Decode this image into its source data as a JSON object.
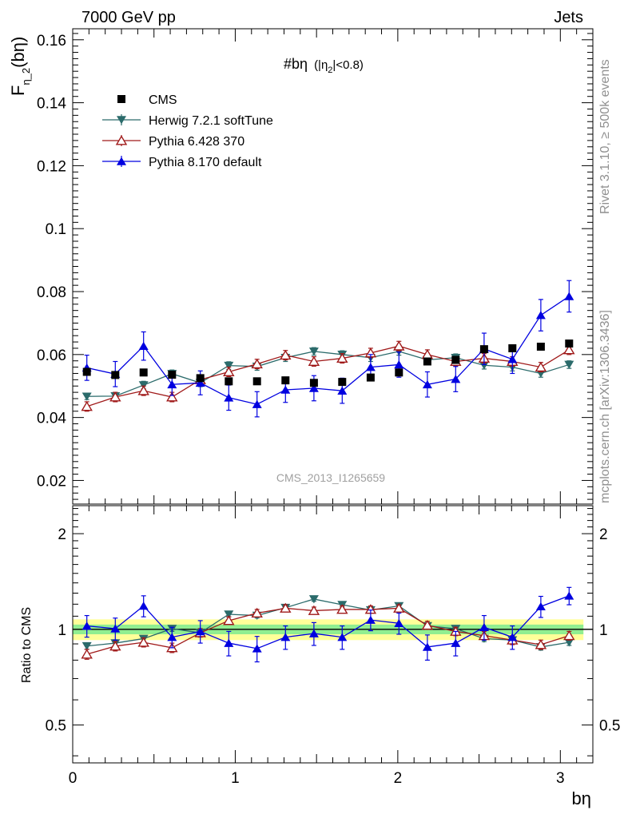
{
  "header": {
    "left": "7000 GeV pp",
    "right": "Jets"
  },
  "side_labels": {
    "rivet": "Rivet 3.1.10, ≥ 500k events",
    "mcplots": "mcplots.cern.ch [arXiv:1306.3436]"
  },
  "colors": {
    "data": "#000000",
    "herwig": "#2b6b6b",
    "pythia6": "#a01a1a",
    "pythia8": "#0000e0",
    "band_inner": "#90ee90",
    "band_outer": "#ffff99",
    "watermark": "#a0a0a0"
  },
  "chart_data": [
    {
      "type": "scatter",
      "title": "#bη",
      "title_suffix": "(|η",
      "title_sub": "2",
      "title_end": "|<0.8)",
      "watermark": "CMS_2013_I1265659",
      "ylabel_main": "F",
      "ylabel_sub": "η_2",
      "ylabel_end": "(bη)",
      "xlim": [
        0,
        3.2
      ],
      "ylim": [
        0.0125,
        0.1635
      ],
      "yticks": [
        0.02,
        0.04,
        0.06,
        0.08,
        0.1,
        0.12,
        0.14,
        0.16
      ],
      "ytick_labels": [
        "0.02",
        "0.04",
        "0.06",
        "0.08",
        "0.1",
        "0.12",
        "0.14",
        "0.16"
      ],
      "x": [
        0.087,
        0.262,
        0.436,
        0.611,
        0.785,
        0.96,
        1.134,
        1.309,
        1.484,
        1.658,
        1.833,
        2.007,
        2.182,
        2.356,
        2.531,
        2.705,
        2.88,
        3.054
      ],
      "legend": [
        "CMS",
        "Herwig 7.2.1 softTune",
        "Pythia 6.428 370",
        "Pythia 8.170 default"
      ],
      "series": [
        {
          "name": "CMS",
          "key": "data",
          "marker": "square",
          "values": [
            0.0545,
            0.0535,
            0.0543,
            0.0536,
            0.0525,
            0.0515,
            0.0515,
            0.0518,
            0.051,
            0.0513,
            0.0527,
            0.0543,
            0.0578,
            0.0583,
            0.0617,
            0.062,
            0.0625,
            0.0635
          ],
          "errors": [
            0.0008,
            0.0008,
            0.0008,
            0.0008,
            0.0008,
            0.0008,
            0.0008,
            0.0008,
            0.0008,
            0.0008,
            0.0008,
            0.0008,
            0.0008,
            0.0008,
            0.0008,
            0.0008,
            0.0008,
            0.0008
          ]
        },
        {
          "name": "Herwig 7.2.1 softTune",
          "key": "herwig",
          "marker": "triangle-down",
          "values": [
            0.0467,
            0.0468,
            0.0503,
            0.0539,
            0.051,
            0.0565,
            0.0562,
            0.059,
            0.061,
            0.06,
            0.059,
            0.061,
            0.0583,
            0.059,
            0.0566,
            0.056,
            0.054,
            0.0568
          ],
          "errors": [
            0.001,
            0.0012,
            0.0012,
            0.0012,
            0.0012,
            0.0012,
            0.0012,
            0.0012,
            0.0012,
            0.0012,
            0.0012,
            0.0012,
            0.0012,
            0.0012,
            0.0012,
            0.0012,
            0.0012,
            0.0012
          ]
        },
        {
          "name": "Pythia 6.428 370",
          "key": "pythia6",
          "marker": "triangle-open",
          "values": [
            0.0435,
            0.0465,
            0.0485,
            0.0465,
            0.052,
            0.0545,
            0.057,
            0.0598,
            0.0578,
            0.0588,
            0.0605,
            0.0627,
            0.06,
            0.0578,
            0.0588,
            0.0578,
            0.056,
            0.0615
          ],
          "errors": [
            0.0015,
            0.0015,
            0.0015,
            0.0015,
            0.0015,
            0.0015,
            0.0015,
            0.0015,
            0.0015,
            0.0015,
            0.0015,
            0.0015,
            0.0015,
            0.0015,
            0.0015,
            0.0015,
            0.0015,
            0.0015
          ]
        },
        {
          "name": "Pythia 8.170 default",
          "key": "pythia8",
          "marker": "triangle-up",
          "values": [
            0.0558,
            0.0538,
            0.0627,
            0.0505,
            0.051,
            0.0463,
            0.0442,
            0.0488,
            0.0493,
            0.0485,
            0.056,
            0.0568,
            0.0505,
            0.0522,
            0.0618,
            0.0585,
            0.0725,
            0.0785
          ],
          "errors": [
            0.004,
            0.004,
            0.0045,
            0.0035,
            0.0038,
            0.004,
            0.004,
            0.004,
            0.004,
            0.004,
            0.004,
            0.004,
            0.004,
            0.004,
            0.005,
            0.0045,
            0.005,
            0.005
          ]
        }
      ]
    },
    {
      "type": "scatter",
      "role": "ratio",
      "ylabel": "Ratio to CMS",
      "xlabel": "bη",
      "xlim": [
        0,
        3.2
      ],
      "ylim": [
        0.38,
        2.45
      ],
      "yscale": "log",
      "yticks": [
        0.5,
        1,
        2
      ],
      "ytick_labels": [
        "0.5",
        "1",
        "2"
      ],
      "xticks": [
        0,
        1,
        2,
        3
      ],
      "xtick_labels": [
        "0",
        "1",
        "2",
        "3"
      ],
      "reference": 1,
      "band_inner": 0.035,
      "band_outer": 0.075,
      "x": [
        0.087,
        0.262,
        0.436,
        0.611,
        0.785,
        0.96,
        1.134,
        1.309,
        1.484,
        1.658,
        1.833,
        2.007,
        2.182,
        2.356,
        2.531,
        2.705,
        2.88,
        3.054
      ],
      "series": [
        {
          "name": "Herwig 7.2.1 softTune",
          "key": "herwig",
          "marker": "triangle-down",
          "values": [
            0.886,
            0.905,
            0.935,
            1.005,
            0.975,
            1.115,
            1.105,
            1.17,
            1.245,
            1.195,
            1.15,
            1.185,
            1.025,
            1.005,
            0.935,
            0.925,
            0.88,
            0.91
          ],
          "errors": [
            0.02,
            0.02,
            0.02,
            0.02,
            0.02,
            0.02,
            0.02,
            0.02,
            0.02,
            0.02,
            0.02,
            0.02,
            0.02,
            0.02,
            0.02,
            0.02,
            0.02,
            0.02
          ]
        },
        {
          "name": "Pythia 6.428 370",
          "key": "pythia6",
          "marker": "triangle-open",
          "values": [
            0.835,
            0.885,
            0.91,
            0.875,
            0.975,
            1.065,
            1.125,
            1.165,
            1.145,
            1.155,
            1.155,
            1.165,
            1.03,
            0.985,
            0.955,
            0.925,
            0.895,
            0.955
          ],
          "errors": [
            0.03,
            0.03,
            0.03,
            0.03,
            0.03,
            0.03,
            0.03,
            0.03,
            0.03,
            0.03,
            0.03,
            0.03,
            0.03,
            0.03,
            0.03,
            0.03,
            0.03,
            0.03
          ]
        },
        {
          "name": "Pythia 8.170 default",
          "key": "pythia8",
          "marker": "triangle-up",
          "values": [
            1.025,
            1.005,
            1.185,
            0.945,
            0.985,
            0.905,
            0.87,
            0.945,
            0.97,
            0.945,
            1.07,
            1.045,
            0.88,
            0.905,
            1.015,
            0.945,
            1.18,
            1.275
          ],
          "errors": [
            0.08,
            0.08,
            0.09,
            0.07,
            0.08,
            0.08,
            0.08,
            0.08,
            0.08,
            0.08,
            0.08,
            0.08,
            0.08,
            0.08,
            0.09,
            0.08,
            0.09,
            0.08
          ]
        }
      ]
    }
  ]
}
